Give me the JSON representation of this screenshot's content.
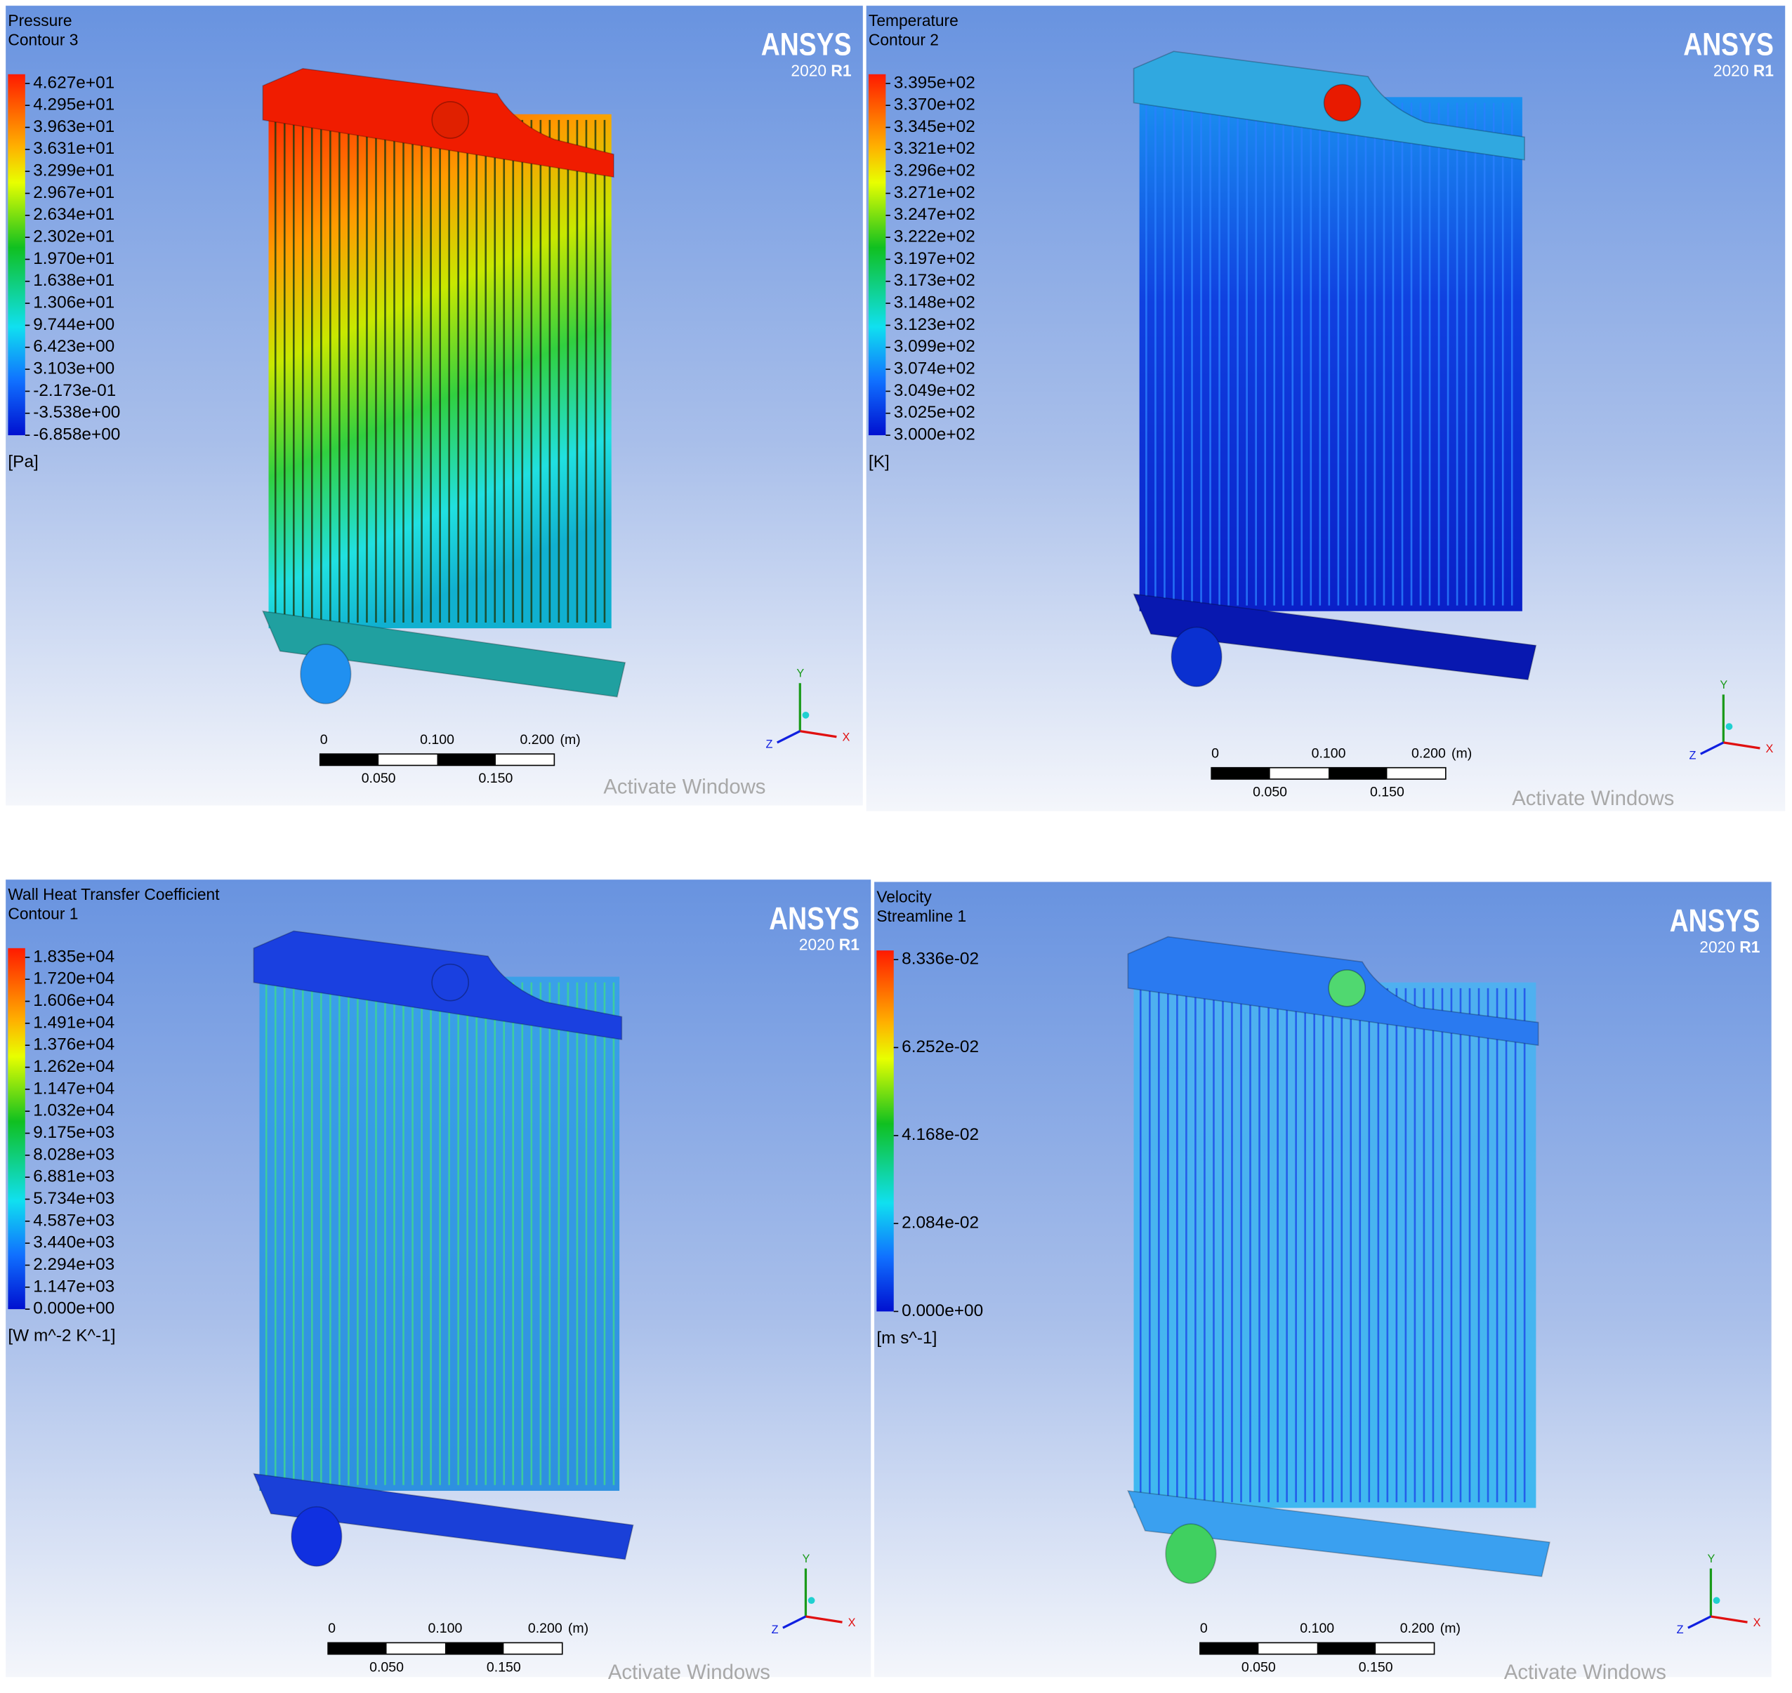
{
  "panels": [
    {
      "title": "Pressure",
      "subtitle": "Contour 3",
      "brand": "ANSYS",
      "version": "2020",
      "release": "R1",
      "legend": {
        "labels": [
          "4.627e+01",
          "4.295e+01",
          "3.963e+01",
          "3.631e+01",
          "3.299e+01",
          "2.967e+01",
          "2.634e+01",
          "2.302e+01",
          "1.970e+01",
          "1.638e+01",
          "1.306e+01",
          "9.744e+00",
          "6.423e+00",
          "3.103e+00",
          "-2.173e-01",
          "-3.538e+00",
          "-6.858e+00"
        ],
        "unit": "[Pa]"
      },
      "scale": {
        "top": [
          "0",
          "0.100",
          "0.200"
        ],
        "unit": "(m)",
        "bottom": [
          "0.050",
          "0.150"
        ]
      },
      "axes": {
        "y": "Y",
        "x": "X",
        "z": "Z"
      },
      "watermark": "Activate Windows"
    },
    {
      "title": "Temperature",
      "subtitle": "Contour 2",
      "brand": "ANSYS",
      "version": "2020",
      "release": "R1",
      "legend": {
        "labels": [
          "3.395e+02",
          "3.370e+02",
          "3.345e+02",
          "3.321e+02",
          "3.296e+02",
          "3.271e+02",
          "3.247e+02",
          "3.222e+02",
          "3.197e+02",
          "3.173e+02",
          "3.148e+02",
          "3.123e+02",
          "3.099e+02",
          "3.074e+02",
          "3.049e+02",
          "3.025e+02",
          "3.000e+02"
        ],
        "unit": "[K]"
      },
      "scale": {
        "top": [
          "0",
          "0.100",
          "0.200"
        ],
        "unit": "(m)",
        "bottom": [
          "0.050",
          "0.150"
        ]
      },
      "axes": {
        "y": "Y",
        "x": "X",
        "z": "Z"
      },
      "watermark": "Activate Windows"
    },
    {
      "title": "Wall Heat Transfer Coefficient",
      "subtitle": "Contour 1",
      "brand": "ANSYS",
      "version": "2020",
      "release": "R1",
      "legend": {
        "labels": [
          "1.835e+04",
          "1.720e+04",
          "1.606e+04",
          "1.491e+04",
          "1.376e+04",
          "1.262e+04",
          "1.147e+04",
          "1.032e+04",
          "9.175e+03",
          "8.028e+03",
          "6.881e+03",
          "5.734e+03",
          "4.587e+03",
          "3.440e+03",
          "2.294e+03",
          "1.147e+03",
          "0.000e+00"
        ],
        "unit": "[W m^-2 K^-1]"
      },
      "scale": {
        "top": [
          "0",
          "0.100",
          "0.200"
        ],
        "unit": "(m)",
        "bottom": [
          "0.050",
          "0.150"
        ]
      },
      "axes": {
        "y": "Y",
        "x": "X",
        "z": "Z"
      },
      "watermark": "Activate Windows"
    },
    {
      "title": "Velocity",
      "subtitle": "Streamline 1",
      "brand": "ANSYS",
      "version": "2020",
      "release": "R1",
      "legend": {
        "labels": [
          "8.336e-02",
          "6.252e-02",
          "4.168e-02",
          "2.084e-02",
          "0.000e+00"
        ],
        "unit": "[m s^-1]"
      },
      "scale": {
        "top": [
          "0",
          "0.100",
          "0.200"
        ],
        "unit": "(m)",
        "bottom": [
          "0.050",
          "0.150"
        ]
      },
      "axes": {
        "y": "Y",
        "x": "X",
        "z": "Z"
      },
      "watermark": "Activate Windows"
    }
  ]
}
